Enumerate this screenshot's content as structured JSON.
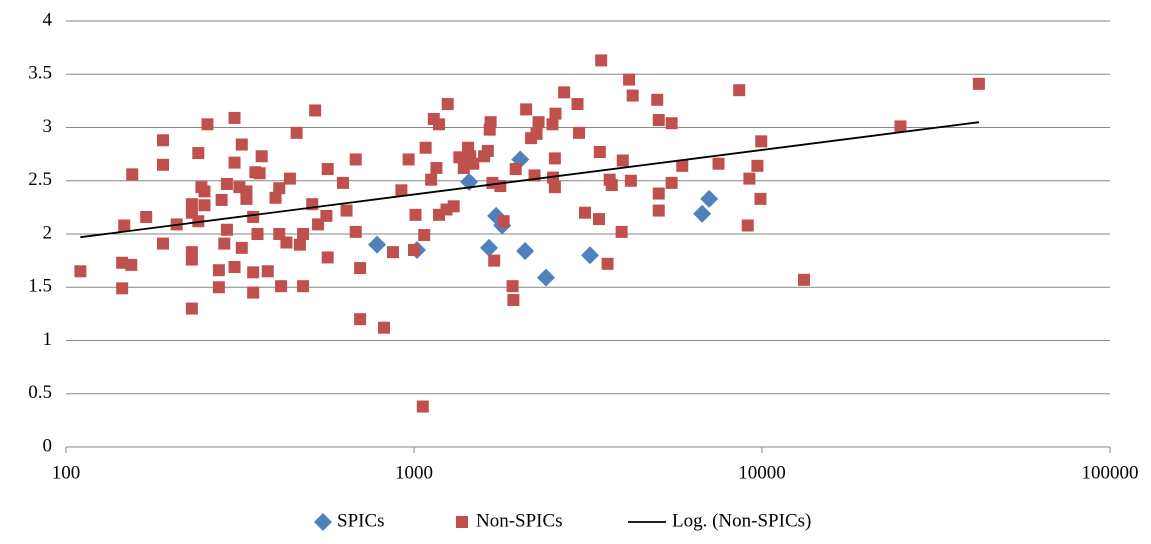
{
  "chart_data": {
    "type": "scatter",
    "x_scale": "log",
    "grid": true,
    "legend": "bottom",
    "xlim": [
      100,
      100000
    ],
    "xticks": [
      100,
      1000,
      10000,
      100000
    ],
    "ylim": [
      0,
      4
    ],
    "yticks": [
      0,
      0.5,
      1,
      1.5,
      2,
      2.5,
      3,
      3.5,
      4
    ],
    "series": [
      {
        "name": "SPICs",
        "color": "#4f81bd",
        "marker": "diamond",
        "x": [
          783,
          1020,
          1440,
          1643,
          1722,
          1792,
          2020,
          2086,
          2395,
          3205,
          6730,
          7050
        ],
        "values": [
          1.9,
          1.85,
          2.49,
          1.87,
          2.17,
          2.08,
          2.7,
          1.84,
          1.59,
          1.8,
          2.19,
          2.33
        ]
      },
      {
        "name": "Non-SPICs",
        "color": "#c0504d",
        "marker": "square",
        "x": [
          110,
          145,
          145,
          147,
          154,
          155,
          170,
          190,
          190,
          190,
          208,
          230,
          230,
          230,
          230,
          230,
          240,
          240,
          245,
          250,
          250,
          255,
          275,
          275,
          280,
          285,
          290,
          290,
          305,
          305,
          305,
          315,
          320,
          320,
          330,
          330,
          345,
          345,
          345,
          350,
          355,
          360,
          365,
          380,
          400,
          410,
          410,
          415,
          430,
          440,
          460,
          470,
          480,
          480,
          510,
          520,
          530,
          560,
          565,
          565,
          625,
          640,
          680,
          680,
          700,
          700,
          820,
          870,
          920,
          965,
          1000,
          1010,
          1060,
          1070,
          1080,
          1120,
          1140,
          1160,
          1180,
          1180,
          1240,
          1250,
          1300,
          1350,
          1390,
          1430,
          1450,
          1480,
          1590,
          1630,
          1650,
          1660,
          1680,
          1700,
          1770,
          1810,
          1920,
          1930,
          1960,
          2100,
          2170,
          2220,
          2250,
          2280,
          2500,
          2510,
          2540,
          2540,
          2550,
          2700,
          2950,
          2980,
          3100,
          3400,
          3420,
          3450,
          3600,
          3650,
          3700,
          3950,
          3980,
          4150,
          4250,
          4200,
          5000,
          5050,
          5050,
          5050,
          5500,
          5500,
          5900,
          7500,
          8600,
          9100,
          9200,
          9700,
          9900,
          9950,
          13200,
          25000,
          42000
        ],
        "values": [
          1.65,
          1.49,
          1.73,
          2.08,
          1.71,
          2.56,
          2.16,
          1.91,
          2.65,
          2.88,
          2.09,
          1.3,
          1.83,
          1.76,
          2.28,
          2.2,
          2.12,
          2.76,
          2.44,
          2.4,
          2.27,
          3.03,
          1.5,
          1.66,
          2.32,
          1.91,
          2.04,
          2.47,
          1.69,
          2.67,
          3.09,
          2.44,
          2.84,
          1.87,
          2.4,
          2.33,
          1.45,
          1.64,
          2.16,
          2.58,
          2.0,
          2.57,
          2.73,
          1.65,
          2.34,
          2.43,
          2.0,
          1.51,
          1.92,
          2.52,
          2.95,
          1.9,
          1.51,
          2.0,
          2.28,
          3.16,
          2.09,
          2.17,
          1.78,
          2.61,
          2.48,
          2.22,
          2.02,
          2.7,
          1.68,
          1.2,
          1.12,
          1.83,
          2.41,
          2.7,
          1.85,
          2.18,
          0.38,
          1.99,
          2.81,
          2.51,
          3.08,
          2.62,
          3.03,
          2.18,
          2.23,
          3.22,
          2.26,
          2.72,
          2.62,
          2.81,
          2.73,
          2.66,
          2.73,
          2.78,
          2.98,
          3.05,
          2.48,
          1.75,
          2.45,
          2.12,
          1.51,
          1.38,
          2.61,
          3.17,
          2.9,
          2.55,
          2.94,
          3.05,
          3.03,
          2.53,
          2.71,
          2.44,
          3.13,
          3.33,
          3.22,
          2.95,
          2.2,
          2.14,
          2.77,
          3.63,
          1.72,
          2.51,
          2.46,
          2.02,
          2.69,
          3.45,
          3.3,
          2.5,
          3.26,
          3.07,
          2.38,
          2.22,
          3.04,
          2.48,
          2.64,
          2.66,
          3.35,
          2.08,
          2.52,
          2.64,
          2.33,
          2.87,
          1.57,
          3.01,
          3.41
        ]
      },
      {
        "name": "Log. (Non-SPICs)",
        "color": "#000000",
        "marker": "line",
        "x": [
          110,
          42000
        ],
        "values": [
          1.97,
          3.05
        ]
      }
    ]
  }
}
